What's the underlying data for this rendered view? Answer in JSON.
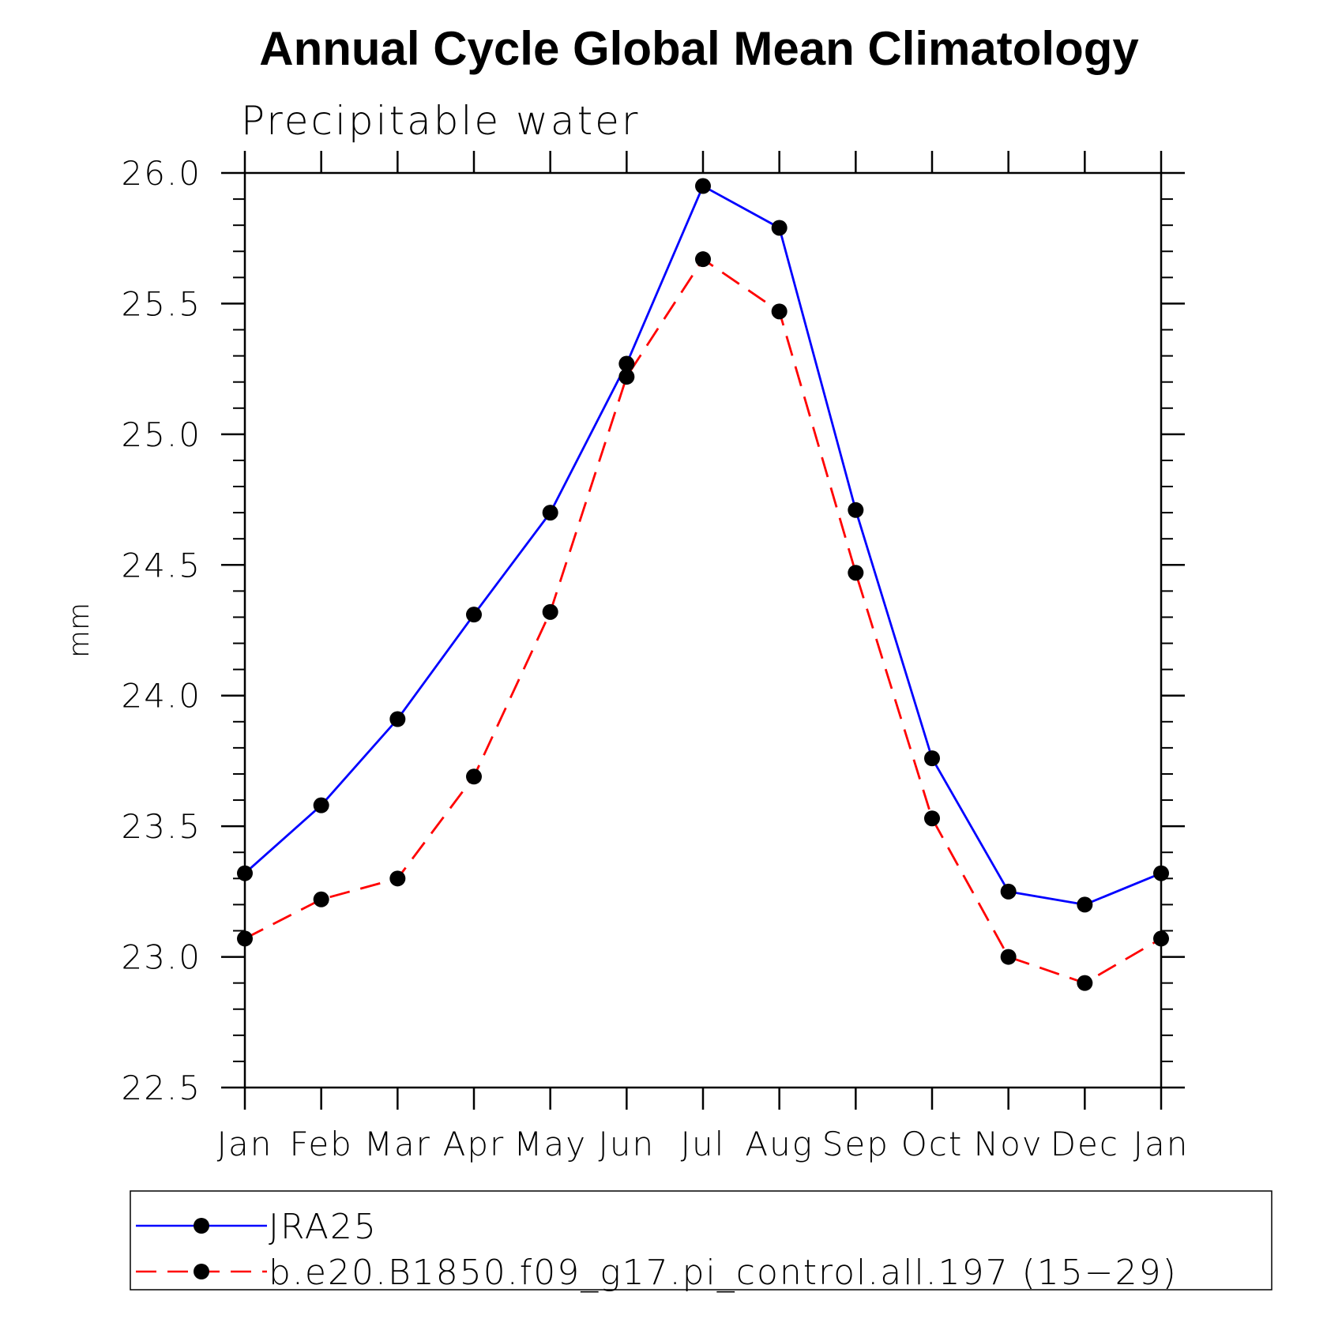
{
  "chart_data": {
    "type": "line",
    "title": "Annual Cycle Global Mean Climatology",
    "subtitle": "Precipitable water",
    "xlabel": "",
    "ylabel": "mm",
    "categories": [
      "Jan",
      "Feb",
      "Mar",
      "Apr",
      "May",
      "Jun",
      "Jul",
      "Aug",
      "Sep",
      "Oct",
      "Nov",
      "Dec",
      "Jan"
    ],
    "ylim": [
      22.5,
      26.0
    ],
    "yticks": [
      "22.5",
      "23.0",
      "23.5",
      "24.0",
      "24.5",
      "25.0",
      "25.5",
      "26.0"
    ],
    "series": [
      {
        "name": "JRA25",
        "color": "#0000ff",
        "style": "solid",
        "values": [
          23.32,
          23.58,
          23.91,
          24.31,
          24.7,
          25.27,
          25.95,
          25.79,
          24.71,
          23.76,
          23.25,
          23.2,
          23.32
        ]
      },
      {
        "name": "b.e20.B1850.f09_g17.pi_control.all.197 (15−29)",
        "color": "#ff0000",
        "style": "dashed",
        "values": [
          23.07,
          23.22,
          23.3,
          23.69,
          24.32,
          25.22,
          25.67,
          25.47,
          24.47,
          23.53,
          23.0,
          22.9,
          23.07
        ]
      }
    ],
    "marker": "filled-circle",
    "marker_color": "#000000",
    "grid": false,
    "legend_placement": "bottom"
  }
}
